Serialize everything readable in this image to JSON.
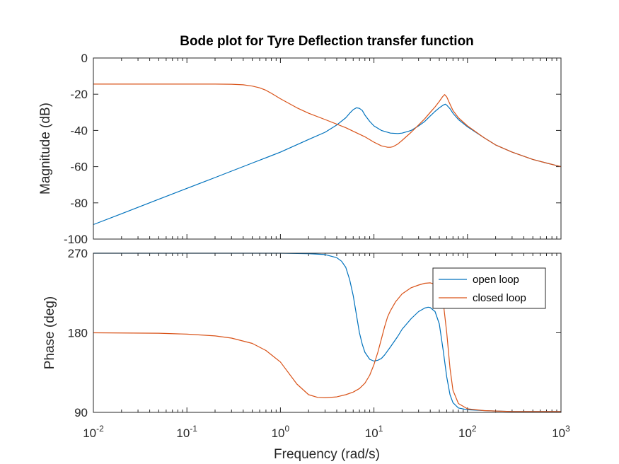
{
  "chart_data": {
    "type": "line",
    "title": "Bode plot for Tyre Deflection transfer function",
    "xlabel": "Frequency  (rad/s)",
    "xscale": "log",
    "xlim": [
      0.01,
      1000
    ],
    "xticks": [
      {
        "base": "10",
        "exp": "-2"
      },
      {
        "base": "10",
        "exp": "-1"
      },
      {
        "base": "10",
        "exp": "0"
      },
      {
        "base": "10",
        "exp": "1"
      },
      {
        "base": "10",
        "exp": "2"
      },
      {
        "base": "10",
        "exp": "3"
      }
    ],
    "grid": false,
    "legend": {
      "location": "top-right",
      "entries": [
        "open loop",
        "closed loop"
      ]
    },
    "colors": {
      "open loop": "#0072BD",
      "closed loop": "#D95319"
    },
    "panels": [
      {
        "ylabel": "Magnitude (dB)",
        "ylim": [
          -100,
          0
        ],
        "yticks": [
          "0",
          "-20",
          "-40",
          "-60",
          "-80",
          "-100"
        ],
        "series": [
          {
            "name": "open loop",
            "x": [
              0.01,
              0.02,
              0.05,
              0.1,
              0.2,
              0.5,
              1,
              2,
              3,
              4,
              5,
              5.5,
              6,
              6.5,
              7,
              7.5,
              8,
              9,
              10,
              12,
              15,
              18,
              20,
              25,
              30,
              35,
              40,
              45,
              50,
              55,
              58,
              60,
              65,
              70,
              80,
              100,
              150,
              200,
              300,
              500,
              700,
              1000
            ],
            "y": [
              -92,
              -86,
              -78,
              -72,
              -66,
              -58,
              -52,
              -45,
              -41,
              -37,
              -33,
              -30.5,
              -28.5,
              -27.5,
              -27.8,
              -29,
              -31.5,
              -35,
              -37.5,
              -40,
              -41.5,
              -41.7,
              -41.5,
              -40,
              -37.5,
              -35,
              -32,
              -29.5,
              -27.5,
              -26,
              -25.5,
              -26,
              -28,
              -30.5,
              -34,
              -38,
              -44,
              -48,
              -52,
              -56,
              -58,
              -60
            ]
          },
          {
            "name": "closed loop",
            "x": [
              0.01,
              0.05,
              0.1,
              0.2,
              0.3,
              0.4,
              0.5,
              0.6,
              0.7,
              0.8,
              1,
              1.5,
              2,
              3,
              5,
              8,
              10,
              12,
              14,
              15,
              16,
              18,
              20,
              25,
              30,
              35,
              40,
              45,
              50,
              54,
              57,
              60,
              65,
              70,
              80,
              100,
              150,
              200,
              300,
              500,
              700,
              1000
            ],
            "y": [
              -14.4,
              -14.4,
              -14.4,
              -14.4,
              -14.5,
              -14.8,
              -15.5,
              -16.5,
              -17.8,
              -19.5,
              -22.5,
              -27.5,
              -30.5,
              -34,
              -38.5,
              -43.5,
              -46.5,
              -48.5,
              -49.3,
              -49.3,
              -49,
              -47.5,
              -45.5,
              -41,
              -37,
              -33.5,
              -30,
              -27,
              -24,
              -21.5,
              -20.2,
              -21.5,
              -25.5,
              -29,
              -33,
              -37.5,
              -44,
              -48,
              -52,
              -56,
              -58,
              -60
            ]
          }
        ]
      },
      {
        "ylabel": "Phase (deg)",
        "ylim": [
          90,
          270
        ],
        "yticks": [
          "270",
          "180",
          "90"
        ],
        "series": [
          {
            "name": "open loop",
            "x": [
              0.01,
              0.1,
              0.5,
              1,
              2,
              3,
              4,
              4.5,
              5,
              5.5,
              6,
              6.5,
              7,
              7.5,
              8,
              9,
              10,
              11,
              12,
              13,
              15,
              18,
              20,
              25,
              30,
              35,
              38,
              40,
              45,
              50,
              55,
              60,
              65,
              70,
              80,
              100,
              150,
              200,
              300,
              500,
              1000
            ],
            "y": [
              270,
              270,
              270,
              270,
              269.5,
              268.5,
              265,
              261,
              254,
              240,
              222,
              200,
              180,
              167,
              158,
              150,
              148,
              149,
              151,
              155,
              164,
              176,
              184,
              196,
              204,
              208,
              209,
              208.5,
              204,
              190,
              160,
              130,
              110,
              101,
              95,
              93,
              92,
              91.5,
              91,
              91,
              91
            ]
          },
          {
            "name": "closed loop",
            "x": [
              0.01,
              0.05,
              0.1,
              0.2,
              0.3,
              0.5,
              0.7,
              1,
              1.5,
              2,
              2.5,
              3,
              4,
              5,
              6,
              7,
              8,
              9,
              10,
              11,
              12,
              13,
              14,
              15,
              17,
              20,
              25,
              30,
              35,
              40,
              45,
              50,
              55,
              60,
              65,
              70,
              80,
              100,
              150,
              200,
              300,
              500,
              1000
            ],
            "y": [
              180,
              179.5,
              178.5,
              176.5,
              174,
              168,
              160,
              147,
              122,
              110,
              107,
              106.5,
              107.5,
              110,
              113,
              117,
              123,
              132,
              144,
              158,
              173,
              187,
              198,
              205,
              215,
              224,
              231,
              234,
              236,
              236.5,
              235,
              230,
              215,
              180,
              140,
              115,
              100,
              94,
              92,
              91.5,
              91,
              91,
              91
            ]
          }
        ]
      }
    ]
  }
}
